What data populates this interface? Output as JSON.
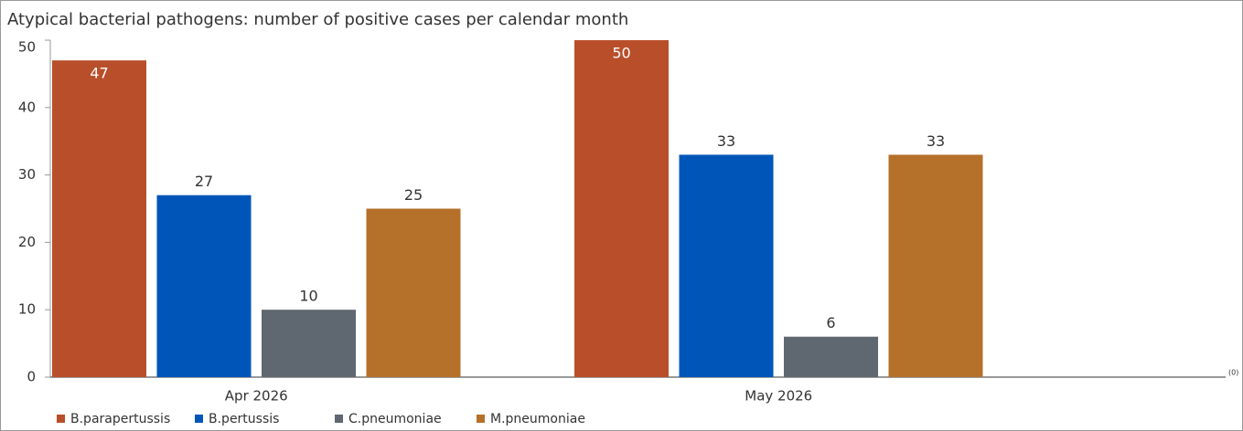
{
  "chart_data": {
    "type": "bar",
    "title": "Atypical bacterial pathogens: number of positive cases per calendar month",
    "categories": [
      "Apr 2026",
      "May 2026"
    ],
    "series": [
      {
        "name": "B.parapertussis",
        "color": "#b94f2a",
        "values": [
          47,
          50
        ]
      },
      {
        "name": "B.pertussis",
        "color": "#0056b8",
        "values": [
          27,
          33
        ]
      },
      {
        "name": "C.pneumoniae",
        "color": "#5f6770",
        "values": [
          10,
          6
        ]
      },
      {
        "name": "M.pneumoniae",
        "color": "#b5702a",
        "values": [
          25,
          33
        ]
      }
    ],
    "ylim": [
      0,
      50
    ],
    "yticks": [
      0,
      10,
      20,
      30,
      40,
      50
    ],
    "annotation": "(0)"
  }
}
